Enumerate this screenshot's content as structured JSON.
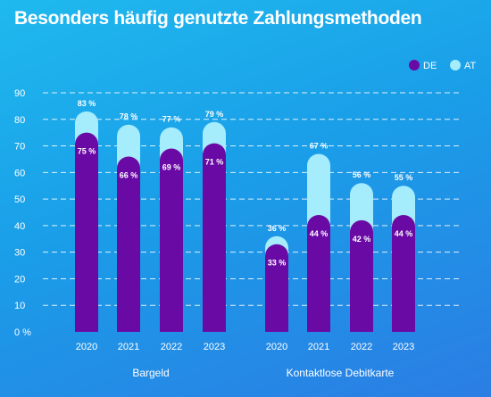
{
  "title": "Besonders häufig genutzte Zahlungsmethoden",
  "colors": {
    "DE": "#6a0aa5",
    "AT": "#a5ecfc",
    "grid": "#ffffff",
    "text": "#ffffff"
  },
  "chart_data": {
    "type": "bar",
    "title": "Besonders häufig genutzte Zahlungsmethoden",
    "legend": [
      "DE",
      "AT"
    ],
    "legend_position": "top-right",
    "ylim": [
      0,
      90
    ],
    "yticks": [
      "0 %",
      "10",
      "20",
      "30",
      "40",
      "50",
      "60",
      "70",
      "80",
      "90"
    ],
    "grid": true,
    "groups": [
      {
        "name": "Bargeld",
        "categories": [
          "2020",
          "2021",
          "2022",
          "2023"
        ],
        "series": [
          {
            "name": "DE",
            "values": [
              75,
              66,
              69,
              71
            ],
            "labels": [
              "75 %",
              "66 %",
              "69 %",
              "71 %"
            ]
          },
          {
            "name": "AT",
            "values": [
              83,
              78,
              77,
              79
            ],
            "labels": [
              "83 %",
              "78 %",
              "77 %",
              "79 %"
            ]
          }
        ]
      },
      {
        "name": "Kontaktlose Debitkarte",
        "categories": [
          "2020",
          "2021",
          "2022",
          "2023"
        ],
        "series": [
          {
            "name": "DE",
            "values": [
              33,
              44,
              42,
              44
            ],
            "labels": [
              "33 %",
              "44 %",
              "42 %",
              "44 %"
            ]
          },
          {
            "name": "AT",
            "values": [
              36,
              67,
              56,
              55
            ],
            "labels": [
              "36 %",
              "67 %",
              "56 %",
              "55 %"
            ]
          }
        ]
      }
    ]
  }
}
